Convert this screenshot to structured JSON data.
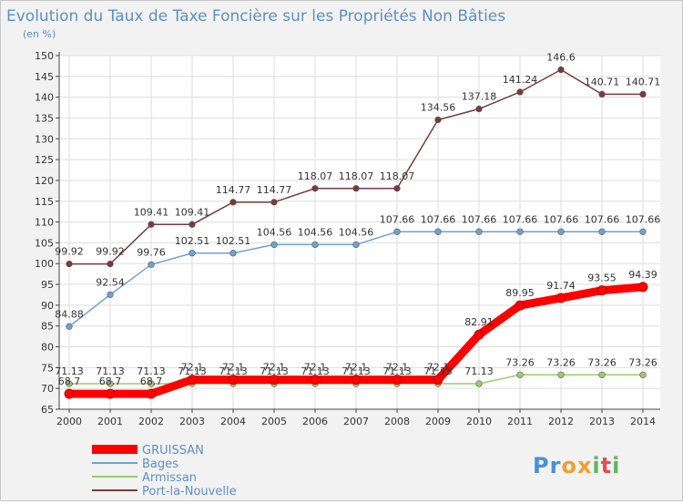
{
  "chart_data": {
    "type": "line",
    "title": "Evolution du Taux de Taxe Foncière sur les Propriétés Non Bâties",
    "ylabel": "(en %)",
    "xlabel": "",
    "ylim": [
      65,
      150
    ],
    "yticks": [
      65,
      70,
      75,
      80,
      85,
      90,
      95,
      100,
      105,
      110,
      115,
      120,
      125,
      130,
      135,
      140,
      145,
      150
    ],
    "x": [
      "2000",
      "2001",
      "2002",
      "2003",
      "2004",
      "2005",
      "2006",
      "2007",
      "2008",
      "2009",
      "2010",
      "2011",
      "2012",
      "2013",
      "2014"
    ],
    "series": [
      {
        "name": "Port-la-Nouvelle",
        "color": "#7a3b3b",
        "values": [
          99.92,
          99.92,
          109.41,
          109.41,
          114.77,
          114.77,
          118.07,
          118.07,
          118.07,
          134.56,
          137.18,
          141.24,
          146.6,
          140.71,
          140.71
        ],
        "labels": [
          "99.92",
          "99.92",
          "109.41",
          "109.41",
          "114.77",
          "114.77",
          "118.07",
          "118.07",
          "118.07",
          "134.56",
          "137.18",
          "141.24",
          "146.6",
          "140.71",
          "140.71"
        ]
      },
      {
        "name": "Bages",
        "color": "#6fa3cf",
        "values": [
          84.88,
          92.54,
          99.76,
          102.51,
          102.51,
          104.56,
          104.56,
          104.56,
          107.66,
          107.66,
          107.66,
          107.66,
          107.66,
          107.66,
          107.66
        ],
        "labels": [
          "84.88",
          "92.54",
          "99.76",
          "102.51",
          "102.51",
          "104.56",
          "104.56",
          "104.56",
          "107.66",
          "107.66",
          "107.66",
          "107.66",
          "107.66",
          "107.66",
          "107.66"
        ]
      },
      {
        "name": "Armissan",
        "color": "#9ccc6e",
        "values": [
          71.13,
          71.13,
          71.13,
          71.13,
          71.13,
          71.13,
          71.13,
          71.13,
          71.13,
          71.13,
          71.13,
          73.26,
          73.26,
          73.26,
          73.26
        ],
        "labels": [
          "71.13",
          "71.13",
          "71.13",
          "71.13",
          "71.13",
          "71.13",
          "71.13",
          "71.13",
          "71.13",
          "71.13",
          "71.13",
          "73.26",
          "73.26",
          "73.26",
          "73.26"
        ]
      },
      {
        "name": "GRUISSAN",
        "color": "#ff0000",
        "values": [
          68.7,
          68.7,
          68.7,
          72.1,
          72.1,
          72.1,
          72.1,
          72.1,
          72.1,
          72.1,
          82.91,
          89.95,
          91.74,
          93.55,
          94.39
        ],
        "labels": [
          "68.7",
          "68.7",
          "68.7",
          "72.1",
          "72.1",
          "72.1",
          "72.1",
          "72.1",
          "72.1",
          "72.1",
          "82.91",
          "89.95",
          "91.74",
          "93.55",
          "94.39"
        ]
      }
    ],
    "legend": {
      "placement": "bottom-left",
      "items": [
        {
          "name": "GRUISSAN",
          "color": "#ff0000"
        },
        {
          "name": "Bages",
          "color": "#6fa3cf"
        },
        {
          "name": "Armissan",
          "color": "#9ccc6e"
        },
        {
          "name": "Port-la-Nouvelle",
          "color": "#7a3b3b"
        }
      ]
    }
  },
  "logo": {
    "text": "Proxiti"
  }
}
